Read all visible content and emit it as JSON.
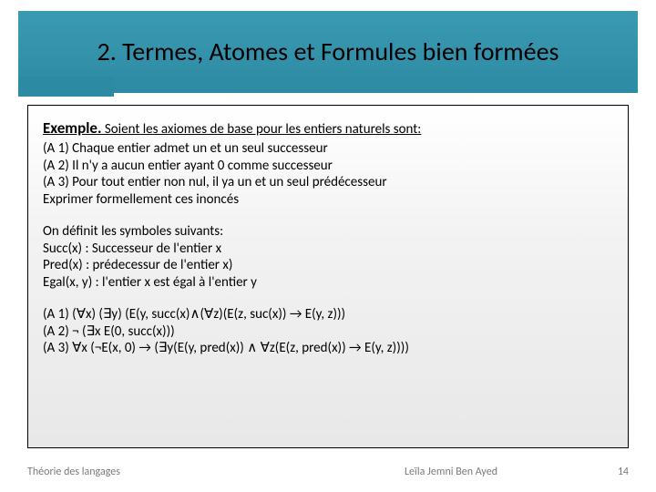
{
  "title": "2. Termes, Atomes et Formules bien formées",
  "example": {
    "label": "Exemple.",
    "intro": " Soient les axiomes de base pour les entiers naturels sont:"
  },
  "axioms_text": {
    "a1": "(A 1) Chaque entier admet un et un seul successeur",
    "a2": "(A 2) Il n'y a aucun entier ayant 0 comme successeur",
    "a3": "(A 3) Pour tout entier non nul, il ya un et un seul prédécesseur",
    "express": "Exprimer formellement ces inoncés"
  },
  "symbols": {
    "intro": "On définit les symboles suivants:",
    "succ": "Succ(x) : Successeur de l'entier x",
    "pred": "Pred(x) : prédecessur de l'entier x)",
    "egal": "Egal(x, y) : l'entier x est égal à l'entier y"
  },
  "formal": {
    "a1": "(A 1) (∀x) (∃y) (E(y, succ(x)∧(∀z)(E(z, suc(x)) → E(y, z)))",
    "a2": "(A 2) ¬ (∃x E(0, succ(x)))",
    "a3": "(A 3) ∀x (¬E(x, 0) → (∃y(E(y, pred(x)) ∧ ∀z(E(z, pred(x)) → E(y, z))))"
  },
  "footer": {
    "left": "Théorie des langages",
    "center": "Leïla Jemni Ben Ayed",
    "page": "14"
  },
  "colors": {
    "band": "#2d8aa3",
    "footer_text": "#7a7a7a"
  }
}
